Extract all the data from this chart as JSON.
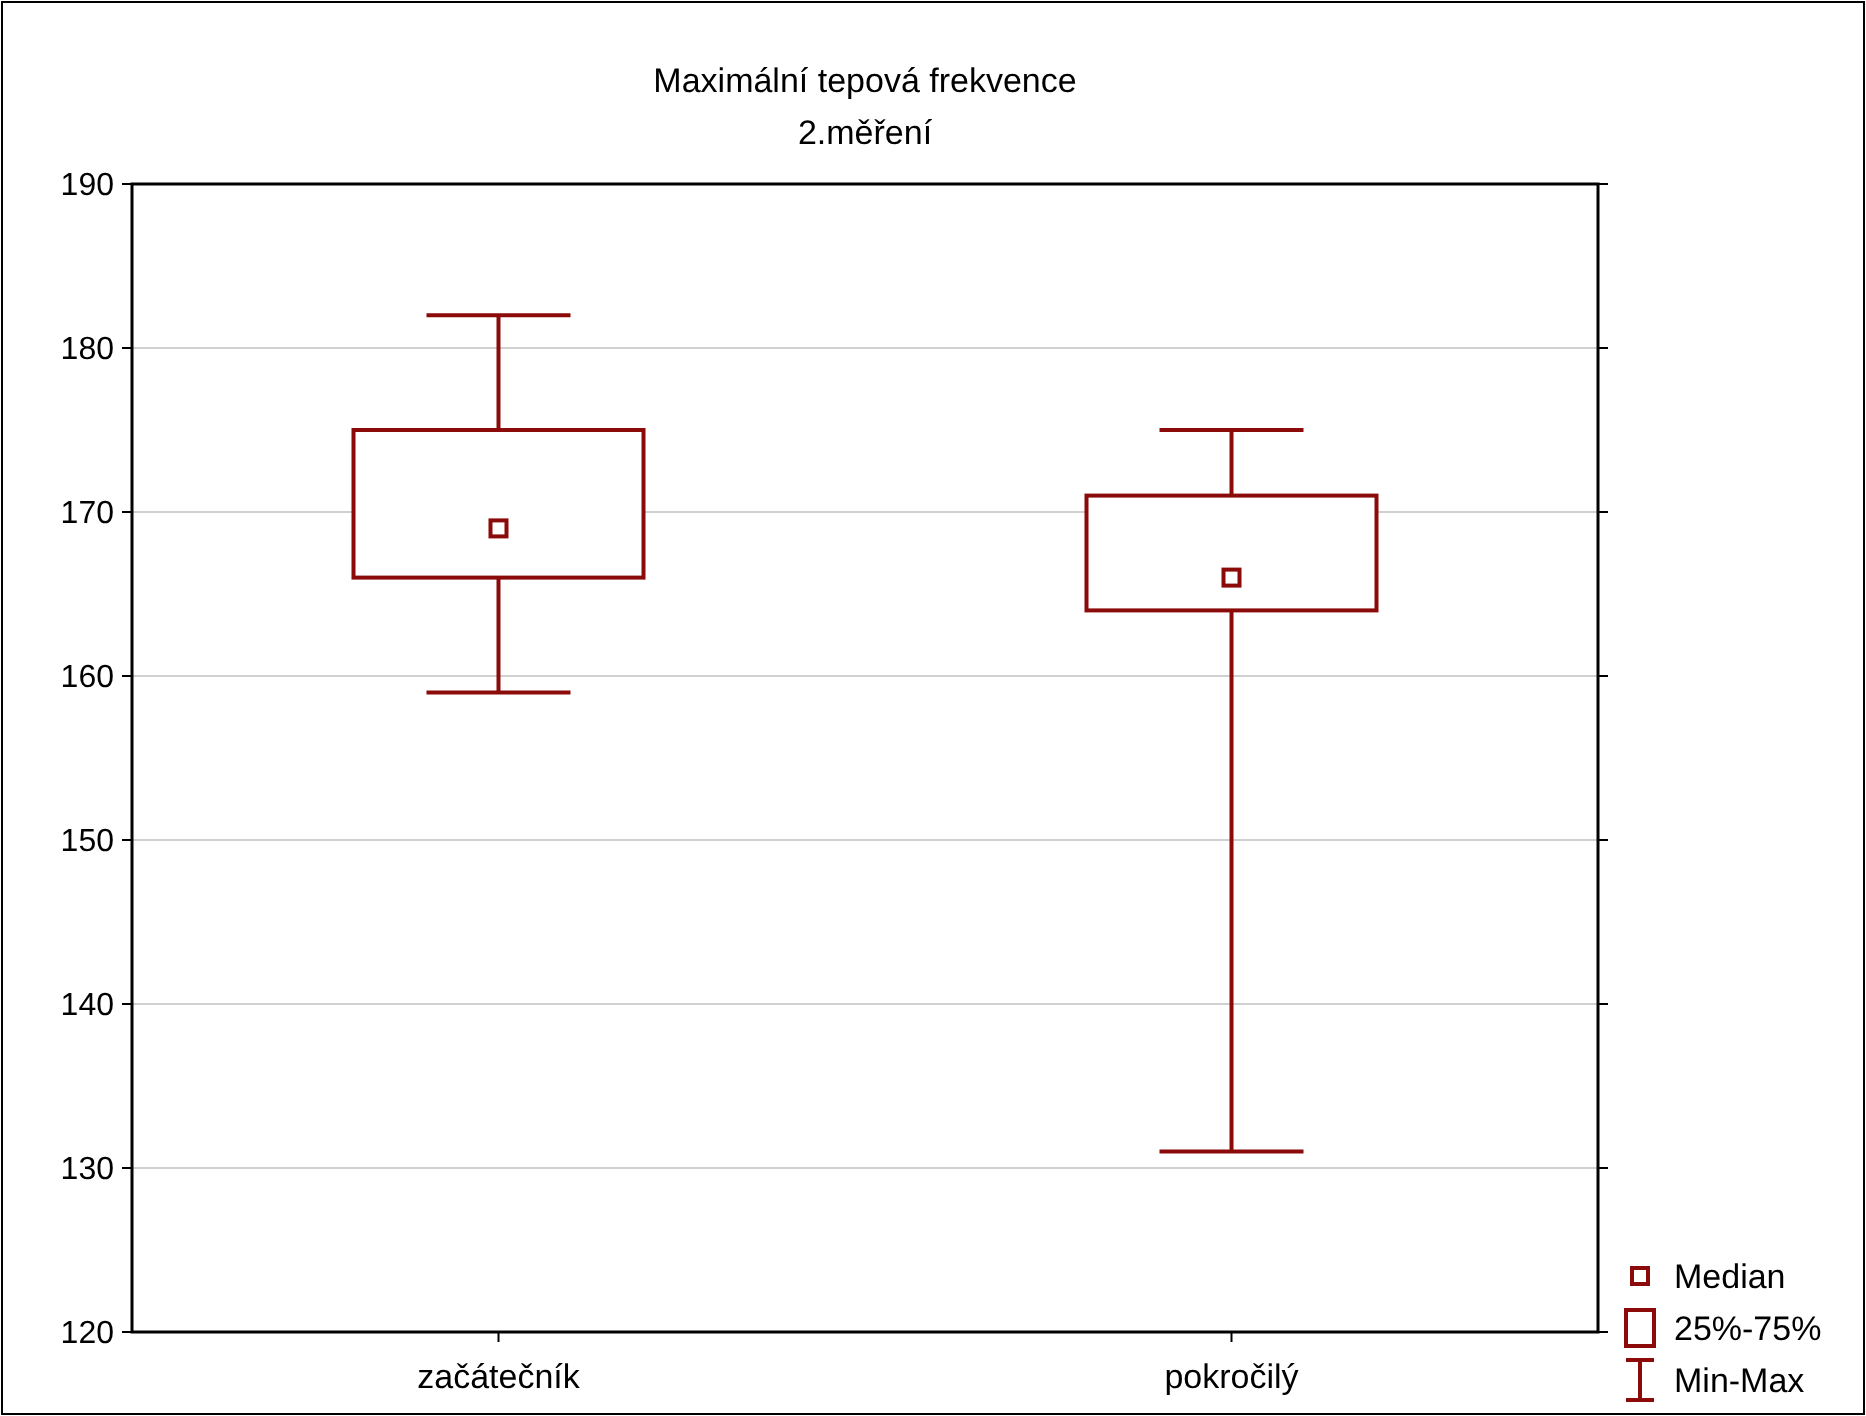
{
  "chart_data": {
    "type": "box",
    "title": "Maximální tepová frekvence",
    "subtitle": "2.měření",
    "categories": [
      "začátečník",
      "pokročilý"
    ],
    "color": "#8b0a0a",
    "boxes": [
      {
        "low": 159,
        "q1": 166,
        "median": 169,
        "q3": 175,
        "high": 182
      },
      {
        "low": 131,
        "q1": 164,
        "median": 166,
        "q3": 171,
        "high": 175
      }
    ],
    "ylim": [
      120,
      190
    ],
    "yticks": [
      120,
      130,
      140,
      150,
      160,
      170,
      180,
      190
    ],
    "grid": "y",
    "annotations": [
      "Median",
      "25%-75%",
      "Min-Max"
    ]
  }
}
